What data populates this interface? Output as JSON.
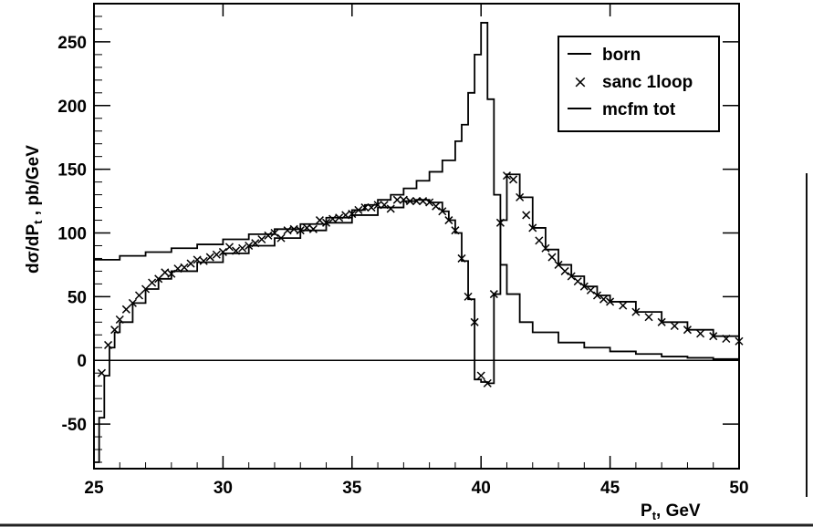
{
  "chart_data": {
    "type": "line",
    "xlabel": "P",
    "xlabel_sub": "t",
    "xlabel_suffix": ", GeV",
    "ylabel": "dσ/dP",
    "ylabel_sub": "t",
    "ylabel_suffix": " , pb/GeV",
    "xlim": [
      25,
      50
    ],
    "ylim": [
      -85,
      280
    ],
    "x_ticks": [
      25,
      30,
      35,
      40,
      45,
      50
    ],
    "y_ticks": [
      -50,
      0,
      50,
      100,
      150,
      200,
      250
    ],
    "legend_position": "top-right",
    "series": [
      {
        "name": "born",
        "style": "step-line",
        "points": [
          [
            25,
            79
          ],
          [
            26,
            82
          ],
          [
            27,
            85
          ],
          [
            28,
            88
          ],
          [
            29,
            91
          ],
          [
            30,
            95
          ],
          [
            31,
            99
          ],
          [
            32,
            103
          ],
          [
            33,
            107
          ],
          [
            34,
            112
          ],
          [
            35,
            118
          ],
          [
            35.5,
            122
          ],
          [
            36,
            126
          ],
          [
            36.5,
            130
          ],
          [
            37,
            135
          ],
          [
            37.5,
            141
          ],
          [
            38,
            148
          ],
          [
            38.5,
            157
          ],
          [
            39,
            172
          ],
          [
            39.25,
            185
          ],
          [
            39.5,
            210
          ],
          [
            39.75,
            240
          ],
          [
            40,
            265
          ],
          [
            40.25,
            205
          ],
          [
            40.5,
            130
          ],
          [
            40.75,
            75
          ],
          [
            41,
            52
          ],
          [
            41.5,
            30
          ],
          [
            42,
            22
          ],
          [
            43,
            14
          ],
          [
            44,
            10
          ],
          [
            45,
            7
          ],
          [
            46,
            5
          ],
          [
            47,
            3
          ],
          [
            48,
            2
          ],
          [
            49,
            1
          ],
          [
            50,
            1
          ]
        ]
      },
      {
        "name": "sanc 1loop",
        "style": "markers-x",
        "points": [
          [
            25.3,
            -10
          ],
          [
            25.55,
            12
          ],
          [
            25.8,
            24
          ],
          [
            26,
            32
          ],
          [
            26.25,
            40
          ],
          [
            26.5,
            45
          ],
          [
            26.75,
            51
          ],
          [
            27,
            56
          ],
          [
            27.25,
            61
          ],
          [
            27.5,
            64
          ],
          [
            27.75,
            69
          ],
          [
            28,
            68
          ],
          [
            28.25,
            72
          ],
          [
            28.5,
            73
          ],
          [
            28.75,
            76
          ],
          [
            29,
            79
          ],
          [
            29.25,
            78
          ],
          [
            29.5,
            81
          ],
          [
            29.75,
            83
          ],
          [
            30,
            85
          ],
          [
            30.25,
            89
          ],
          [
            30.5,
            86
          ],
          [
            30.75,
            88
          ],
          [
            31,
            90
          ],
          [
            31.25,
            92
          ],
          [
            31.5,
            95
          ],
          [
            31.75,
            98
          ],
          [
            32,
            100
          ],
          [
            32.25,
            96
          ],
          [
            32.5,
            102
          ],
          [
            32.75,
            103
          ],
          [
            33,
            102
          ],
          [
            33.25,
            104
          ],
          [
            33.5,
            103
          ],
          [
            33.75,
            110
          ],
          [
            34,
            108
          ],
          [
            34.25,
            111
          ],
          [
            34.5,
            112
          ],
          [
            34.75,
            114
          ],
          [
            35,
            115
          ],
          [
            35.25,
            118
          ],
          [
            35.5,
            120
          ],
          [
            35.75,
            120
          ],
          [
            36,
            122
          ],
          [
            36.25,
            122
          ],
          [
            36.5,
            119
          ],
          [
            36.75,
            126
          ],
          [
            37,
            126
          ],
          [
            37.25,
            125
          ],
          [
            37.5,
            125
          ],
          [
            37.75,
            125
          ],
          [
            38,
            124
          ],
          [
            38.25,
            121
          ],
          [
            38.5,
            117
          ],
          [
            38.75,
            110
          ],
          [
            39,
            102
          ],
          [
            39.25,
            80
          ],
          [
            39.5,
            50
          ],
          [
            39.75,
            30
          ],
          [
            40,
            -12
          ],
          [
            40.25,
            -18
          ],
          [
            40.5,
            52
          ],
          [
            40.75,
            108
          ],
          [
            41,
            145
          ],
          [
            41.25,
            142
          ],
          [
            41.5,
            128
          ],
          [
            41.75,
            114
          ],
          [
            42,
            104
          ],
          [
            42.25,
            94
          ],
          [
            42.5,
            88
          ],
          [
            42.75,
            81
          ],
          [
            43,
            75
          ],
          [
            43.25,
            70
          ],
          [
            43.5,
            66
          ],
          [
            43.75,
            62
          ],
          [
            44,
            58
          ],
          [
            44.25,
            55
          ],
          [
            44.5,
            51
          ],
          [
            44.75,
            48
          ],
          [
            45,
            46
          ],
          [
            45.5,
            43
          ],
          [
            46,
            38
          ],
          [
            46.5,
            34
          ],
          [
            47,
            30
          ],
          [
            47.5,
            27
          ],
          [
            48,
            24
          ],
          [
            48.5,
            21
          ],
          [
            49,
            19
          ],
          [
            49.5,
            17
          ],
          [
            50,
            15
          ]
        ]
      },
      {
        "name": "mcfm tot",
        "style": "step-line",
        "points": [
          [
            25,
            -80
          ],
          [
            25.2,
            -45
          ],
          [
            25.4,
            -12
          ],
          [
            25.6,
            10
          ],
          [
            25.8,
            22
          ],
          [
            26,
            30
          ],
          [
            26.5,
            45
          ],
          [
            27,
            56
          ],
          [
            27.5,
            64
          ],
          [
            28,
            70
          ],
          [
            29,
            77
          ],
          [
            30,
            84
          ],
          [
            31,
            90
          ],
          [
            32,
            96
          ],
          [
            33,
            102
          ],
          [
            34,
            108
          ],
          [
            35,
            114
          ],
          [
            36,
            120
          ],
          [
            37,
            125
          ],
          [
            37.5,
            126
          ],
          [
            38,
            124
          ],
          [
            38.5,
            117
          ],
          [
            38.75,
            110
          ],
          [
            39,
            100
          ],
          [
            39.25,
            78
          ],
          [
            39.5,
            48
          ],
          [
            39.75,
            -15
          ],
          [
            40,
            -17
          ],
          [
            40.25,
            -18
          ],
          [
            40.5,
            52
          ],
          [
            40.75,
            110
          ],
          [
            41,
            146
          ],
          [
            41.5,
            128
          ],
          [
            42,
            104
          ],
          [
            42.5,
            87
          ],
          [
            43,
            75
          ],
          [
            43.5,
            66
          ],
          [
            44,
            58
          ],
          [
            44.5,
            51
          ],
          [
            45,
            46
          ],
          [
            46,
            38
          ],
          [
            47,
            30
          ],
          [
            48,
            24
          ],
          [
            49,
            19
          ],
          [
            50,
            15
          ]
        ]
      }
    ]
  },
  "legend": {
    "items": [
      {
        "label": "born",
        "marker": "line"
      },
      {
        "label": "sanc 1loop",
        "marker": "x"
      },
      {
        "label": "mcfm tot",
        "marker": "line"
      }
    ]
  }
}
